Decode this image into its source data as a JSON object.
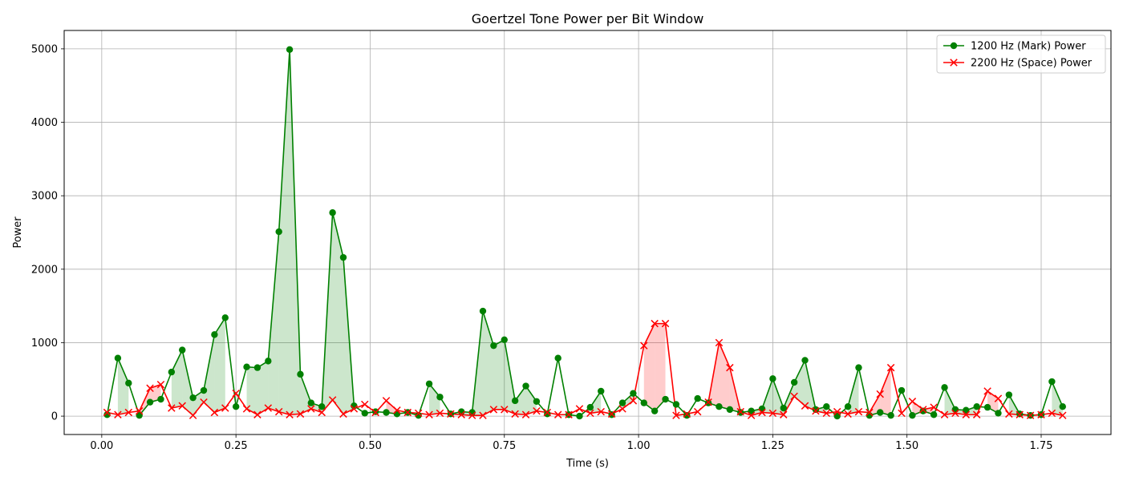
{
  "chart_data": {
    "type": "line",
    "title": "Goertzel Tone Power per Bit Window",
    "xlabel": "Time (s)",
    "ylabel": "Power",
    "xlim": [
      -0.07,
      1.88
    ],
    "ylim": [
      -250,
      5250
    ],
    "x_ticks": [
      0.0,
      0.25,
      0.5,
      0.75,
      1.0,
      1.25,
      1.5,
      1.75
    ],
    "x_tick_labels": [
      "0.00",
      "0.25",
      "0.50",
      "0.75",
      "1.00",
      "1.25",
      "1.50",
      "1.75"
    ],
    "y_ticks": [
      0,
      1000,
      2000,
      3000,
      4000,
      5000
    ],
    "y_tick_labels": [
      "0",
      "1000",
      "2000",
      "3000",
      "4000",
      "5000"
    ],
    "grid": true,
    "legend_position": "top-right",
    "x": [
      0.01,
      0.03,
      0.05,
      0.07,
      0.09,
      0.11,
      0.13,
      0.15,
      0.17,
      0.19,
      0.21,
      0.23,
      0.25,
      0.27,
      0.29,
      0.31,
      0.33,
      0.35,
      0.37,
      0.39,
      0.41,
      0.43,
      0.45,
      0.47,
      0.49,
      0.51,
      0.53,
      0.55,
      0.57,
      0.59,
      0.61,
      0.63,
      0.65,
      0.67,
      0.69,
      0.71,
      0.73,
      0.75,
      0.77,
      0.79,
      0.81,
      0.83,
      0.85,
      0.87,
      0.89,
      0.91,
      0.93,
      0.95,
      0.97,
      0.99,
      1.01,
      1.03,
      1.05,
      1.07,
      1.09,
      1.11,
      1.13,
      1.15,
      1.17,
      1.19,
      1.21,
      1.23,
      1.25,
      1.27,
      1.29,
      1.31,
      1.33,
      1.35,
      1.37,
      1.39,
      1.41,
      1.43,
      1.45,
      1.47,
      1.49,
      1.51,
      1.53,
      1.55,
      1.57,
      1.59,
      1.61,
      1.63,
      1.65,
      1.67,
      1.69,
      1.71,
      1.73,
      1.75,
      1.77,
      1.79
    ],
    "series": [
      {
        "name": "1200 Hz (Mark) Power",
        "color": "#008000",
        "marker": "circle",
        "values": [
          20,
          790,
          450,
          10,
          190,
          230,
          600,
          900,
          250,
          350,
          1110,
          1340,
          130,
          670,
          660,
          750,
          2510,
          4990,
          570,
          180,
          130,
          2770,
          2160,
          140,
          40,
          60,
          50,
          30,
          50,
          10,
          440,
          260,
          30,
          60,
          50,
          1430,
          960,
          1040,
          210,
          410,
          200,
          30,
          790,
          20,
          0,
          120,
          340,
          20,
          180,
          310,
          180,
          70,
          230,
          160,
          10,
          240,
          180,
          130,
          90,
          50,
          70,
          100,
          510,
          110,
          460,
          760,
          90,
          130,
          0,
          130,
          660,
          10,
          50,
          10,
          350,
          10,
          70,
          20,
          390,
          90,
          80,
          130,
          120,
          40,
          290,
          30,
          10,
          20,
          470,
          130
        ]
      },
      {
        "name": "2200 Hz (Space) Power",
        "color": "#ff0000",
        "marker": "x",
        "values": [
          50,
          20,
          50,
          70,
          380,
          430,
          110,
          140,
          10,
          190,
          50,
          110,
          310,
          100,
          20,
          110,
          60,
          20,
          30,
          100,
          50,
          220,
          30,
          100,
          160,
          50,
          210,
          80,
          50,
          40,
          20,
          40,
          30,
          20,
          10,
          10,
          90,
          90,
          30,
          20,
          70,
          50,
          20,
          20,
          100,
          40,
          60,
          30,
          100,
          210,
          960,
          1260,
          1260,
          10,
          30,
          60,
          190,
          1000,
          660,
          60,
          10,
          50,
          40,
          20,
          270,
          140,
          70,
          40,
          60,
          30,
          60,
          50,
          300,
          660,
          40,
          200,
          90,
          120,
          20,
          40,
          20,
          20,
          340,
          240,
          30,
          20,
          10,
          20,
          40,
          10
        ]
      }
    ]
  }
}
